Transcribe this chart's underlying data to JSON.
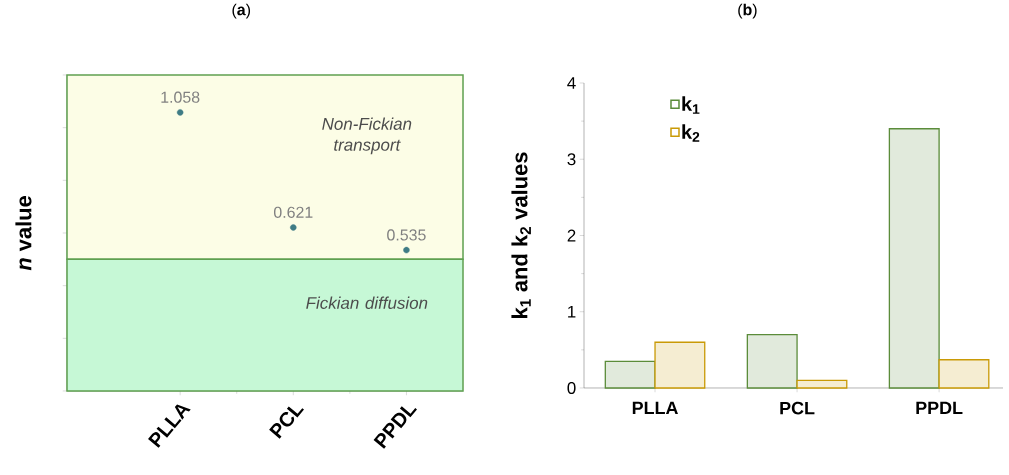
{
  "chart_data": [
    {
      "type": "scatter",
      "title": "(**a**)",
      "ylabel": "*n* value",
      "categories": [
        "PLLA",
        "PCL",
        "PPDL"
      ],
      "values": [
        1.058,
        0.621,
        0.535
      ],
      "color": "#3f7c85",
      "data_labels": true,
      "marker": "circle",
      "legend": false,
      "tick_labels": "x",
      "ylim": [
        0,
        1.2
      ],
      "yticks": [
        {
          "value": 0,
          "label": null
        },
        {
          "value": 0.2,
          "label": null
        },
        {
          "value": 0.4,
          "label": null
        },
        {
          "value": 0.6,
          "label": null
        },
        {
          "value": 0.8,
          "label": null
        },
        {
          "value": 1.0,
          "label": null
        },
        {
          "value": 1.2,
          "label": null
        }
      ],
      "bands": [
        {
          "axis": "y",
          "from": 0.5,
          "to": 1.2,
          "label": "Non-Fickian transport",
          "color": "#fcfde6"
        },
        {
          "axis": "y",
          "from": 0,
          "to": 0.5,
          "label": "Fickian diffusion",
          "color": "#c6f8d6"
        }
      ]
    },
    {
      "type": "bar",
      "title": "(**b**)",
      "ylabel": "k$_{1}$ and k$_{2}$ values",
      "categories": [
        "PLLA",
        "PCL",
        "PPDL"
      ],
      "legend": "top left",
      "ylim": [
        0,
        4
      ],
      "yticks": [
        0,
        1,
        2,
        3,
        4
      ],
      "series": [
        {
          "name": "k$_{1}$",
          "color": "#5b8c3a",
          "values": [
            0.35,
            0.7,
            3.4
          ]
        },
        {
          "name": "k$_{2}$",
          "color": "#c99a06",
          "values": [
            0.6,
            0.1,
            0.37
          ]
        }
      ]
    }
  ]
}
